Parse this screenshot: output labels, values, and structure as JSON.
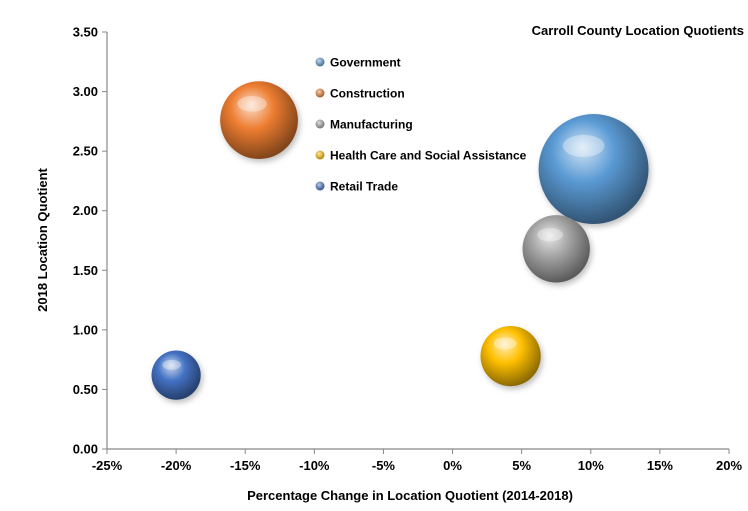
{
  "chart_data": {
    "type": "bubble",
    "title": "Carroll County Location Quotients",
    "xlabel": "Percentage Change in Location Quotient (2014-2018)",
    "ylabel": "2018 Location Quotient",
    "xlim": [
      -25,
      20
    ],
    "ylim": [
      0,
      3.5
    ],
    "x_ticks": [
      -25,
      -20,
      -15,
      -10,
      -5,
      0,
      5,
      10,
      15,
      20
    ],
    "x_tick_labels": [
      "-25%",
      "-20%",
      "-15%",
      "-10%",
      "-5%",
      "0%",
      "5%",
      "10%",
      "15%",
      "20%"
    ],
    "y_ticks": [
      0,
      0.5,
      1,
      1.5,
      2,
      2.5,
      3,
      3.5
    ],
    "y_tick_labels": [
      "0.00",
      "0.50",
      "1.00",
      "1.50",
      "2.00",
      "2.50",
      "3.00",
      "3.50"
    ],
    "grid": false,
    "legend_position": "top-center",
    "series": [
      {
        "name": "Government",
        "x": 10.2,
        "y": 2.35,
        "size": 4.0,
        "color": "#5b9bd5"
      },
      {
        "name": "Construction",
        "x": -14.0,
        "y": 2.76,
        "size": 2.0,
        "color": "#ed7d31"
      },
      {
        "name": "Manufacturing",
        "x": 7.5,
        "y": 1.68,
        "size": 1.5,
        "color": "#a5a5a5"
      },
      {
        "name": "Health Care and Social Assistance",
        "x": 4.2,
        "y": 0.78,
        "size": 1.2,
        "color": "#ffc000"
      },
      {
        "name": "Retail Trade",
        "x": -20.0,
        "y": 0.62,
        "size": 0.8,
        "color": "#4472c4"
      }
    ]
  }
}
